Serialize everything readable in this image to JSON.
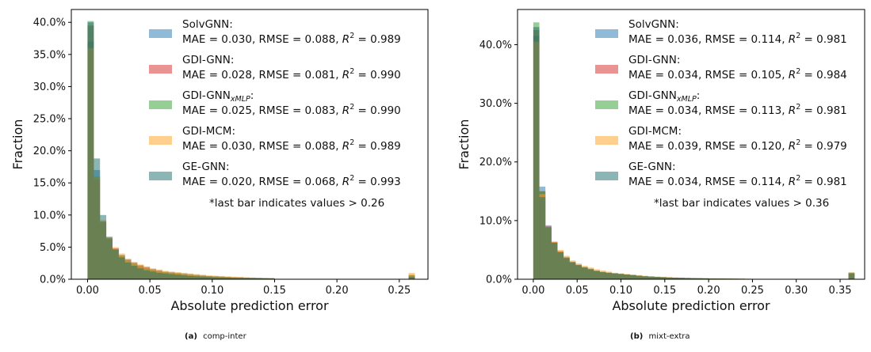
{
  "chart_data": [
    {
      "type": "bar",
      "caption_letter": "(a)",
      "caption_text": "comp-inter",
      "xlabel": "Absolute prediction error",
      "ylabel": "Fraction",
      "xlim": [
        -0.013,
        0.273
      ],
      "ylim": [
        0,
        0.42
      ],
      "xticks": [
        0.0,
        0.05,
        0.1,
        0.15,
        0.2,
        0.25
      ],
      "xtick_labels": [
        "0.00",
        "0.05",
        "0.10",
        "0.15",
        "0.20",
        "0.25"
      ],
      "yticks": [
        0.0,
        0.05,
        0.1,
        0.15,
        0.2,
        0.25,
        0.3,
        0.35,
        0.4
      ],
      "ytick_labels": [
        "0.0%",
        "5.0%",
        "10.0%",
        "15.0%",
        "20.0%",
        "25.0%",
        "30.0%",
        "35.0%",
        "40.0%"
      ],
      "bin_width": 0.005,
      "last_bar_x": 0.26,
      "annotation": "*last bar indicates values > 0.26",
      "legend_position": "upper right",
      "series": [
        {
          "name": "SolvGNN",
          "metrics": "MAE = 0.030, RMSE = 0.088, R",
          "r2": " = 0.989",
          "color": "#1f77b4",
          "values": [
            0.37,
            0.17,
            0.088,
            0.062,
            0.048,
            0.038,
            0.031,
            0.026,
            0.022,
            0.019,
            0.016,
            0.014,
            0.012,
            0.011,
            0.01,
            0.009,
            0.008,
            0.007,
            0.006,
            0.005,
            0.0045,
            0.004,
            0.0035,
            0.003,
            0.003,
            0.0025,
            0.0022,
            0.002,
            0.0018,
            0.0016
          ],
          "last": 0.007
        },
        {
          "name": "GDI-GNN",
          "metrics": "MAE = 0.028, RMSE = 0.081, R",
          "r2": " = 0.990",
          "color": "#d62728",
          "values": [
            0.395,
            0.155,
            0.09,
            0.064,
            0.048,
            0.037,
            0.03,
            0.025,
            0.021,
            0.018,
            0.015,
            0.013,
            0.011,
            0.01,
            0.009,
            0.008,
            0.007,
            0.006,
            0.0055,
            0.005,
            0.0045,
            0.004,
            0.0035,
            0.003,
            0.0028,
            0.0025,
            0.0022,
            0.002,
            0.0018,
            0.0016
          ],
          "last": 0.006
        },
        {
          "name": "GDI-GNN",
          "sub": "xMLP",
          "metrics": "MAE = 0.025, RMSE = 0.083, R",
          "r2": " = 0.990",
          "color": "#2ca02c",
          "values": [
            0.402,
            0.16,
            0.09,
            0.063,
            0.047,
            0.036,
            0.029,
            0.024,
            0.02,
            0.017,
            0.014,
            0.012,
            0.011,
            0.01,
            0.009,
            0.008,
            0.007,
            0.006,
            0.0052,
            0.0047,
            0.0042,
            0.0038,
            0.0034,
            0.003,
            0.0027,
            0.0024,
            0.0021,
            0.0019,
            0.0017,
            0.0015
          ],
          "last": 0.006
        },
        {
          "name": "GDI-MCM",
          "metrics": "MAE = 0.030, RMSE = 0.088, R",
          "r2": " = 0.989",
          "color": "#ff9f1c",
          "values": [
            0.36,
            0.16,
            0.092,
            0.066,
            0.05,
            0.04,
            0.032,
            0.027,
            0.023,
            0.02,
            0.017,
            0.015,
            0.013,
            0.012,
            0.011,
            0.01,
            0.009,
            0.008,
            0.007,
            0.006,
            0.0055,
            0.005,
            0.0045,
            0.004,
            0.0035,
            0.003,
            0.0027,
            0.0024,
            0.0021,
            0.0019
          ],
          "last": 0.01
        },
        {
          "name": "GE-GNN",
          "metrics": "MAE = 0.020, RMSE = 0.068, R",
          "r2": " = 0.993",
          "color": "#1a6b6b",
          "values": [
            0.4,
            0.188,
            0.1,
            0.066,
            0.046,
            0.034,
            0.026,
            0.021,
            0.017,
            0.014,
            0.012,
            0.01,
            0.009,
            0.008,
            0.007,
            0.006,
            0.005,
            0.0045,
            0.004,
            0.0035,
            0.003,
            0.0027,
            0.0024,
            0.0021,
            0.0019,
            0.0017,
            0.0015,
            0.0013,
            0.0012,
            0.0011
          ],
          "last": 0.004
        }
      ]
    },
    {
      "type": "bar",
      "caption_letter": "(b)",
      "caption_text": "mixt-extra",
      "xlabel": "Absolute prediction error",
      "ylabel": "Fraction",
      "xlim": [
        -0.018,
        0.378
      ],
      "ylim": [
        0,
        0.46
      ],
      "xticks": [
        0.0,
        0.05,
        0.1,
        0.15,
        0.2,
        0.25,
        0.3,
        0.35
      ],
      "xtick_labels": [
        "0.00",
        "0.05",
        "0.10",
        "0.15",
        "0.20",
        "0.25",
        "0.30",
        "0.35"
      ],
      "yticks": [
        0.0,
        0.1,
        0.2,
        0.3,
        0.4
      ],
      "ytick_labels": [
        "0.0%",
        "10.0%",
        "20.0%",
        "30.0%",
        "40.0%"
      ],
      "bin_width": 0.0069,
      "last_bar_x": 0.363,
      "annotation": "*last bar indicates values > 0.36",
      "legend_position": "upper right",
      "series": [
        {
          "name": "SolvGNN",
          "metrics": "MAE = 0.036, RMSE = 0.114, R",
          "r2": " = 0.981",
          "color": "#1f77b4",
          "values": [
            0.415,
            0.158,
            0.092,
            0.064,
            0.048,
            0.038,
            0.03,
            0.025,
            0.021,
            0.018,
            0.015,
            0.013,
            0.011,
            0.01,
            0.009,
            0.008,
            0.007,
            0.006,
            0.005,
            0.0045,
            0.004,
            0.0035,
            0.003,
            0.0027,
            0.0024,
            0.0021,
            0.0019,
            0.0017,
            0.0015,
            0.0013,
            0.0012,
            0.0011,
            0.001,
            0.0009,
            0.0008,
            0.0007,
            0.0006,
            0.0006,
            0.0005,
            0.0005,
            0.0004,
            0.0004,
            0.0004,
            0.0003,
            0.0003,
            0.0003,
            0.0003,
            0.0002,
            0.0002,
            0.0002,
            0.0002
          ],
          "last": 0.011
        },
        {
          "name": "GDI-GNN",
          "metrics": "MAE = 0.034, RMSE = 0.105, R",
          "r2": " = 0.984",
          "color": "#d62728",
          "values": [
            0.425,
            0.15,
            0.09,
            0.063,
            0.047,
            0.037,
            0.029,
            0.024,
            0.02,
            0.017,
            0.014,
            0.012,
            0.011,
            0.01,
            0.009,
            0.008,
            0.007,
            0.006,
            0.005,
            0.0045,
            0.004,
            0.0035,
            0.003,
            0.0027,
            0.0024,
            0.0021,
            0.0019,
            0.0017,
            0.0015,
            0.0013,
            0.0012,
            0.0011,
            0.001,
            0.0009,
            0.0008,
            0.0007,
            0.0006,
            0.0006,
            0.0005,
            0.0005,
            0.0004,
            0.0004,
            0.0004,
            0.0003,
            0.0003,
            0.0003,
            0.0003,
            0.0002,
            0.0002,
            0.0002,
            0.0002
          ],
          "last": 0.01
        },
        {
          "name": "GDI-GNN",
          "sub": "xMLP",
          "metrics": "MAE = 0.034, RMSE = 0.113, R",
          "r2": " = 0.981",
          "color": "#2ca02c",
          "values": [
            0.438,
            0.15,
            0.089,
            0.062,
            0.046,
            0.036,
            0.029,
            0.024,
            0.02,
            0.017,
            0.014,
            0.012,
            0.011,
            0.01,
            0.009,
            0.008,
            0.007,
            0.006,
            0.005,
            0.0045,
            0.004,
            0.0035,
            0.003,
            0.0027,
            0.0024,
            0.0021,
            0.0019,
            0.0017,
            0.0015,
            0.0013,
            0.0012,
            0.0011,
            0.001,
            0.0009,
            0.0008,
            0.0007,
            0.0006,
            0.0006,
            0.0005,
            0.0005,
            0.0004,
            0.0004,
            0.0004,
            0.0003,
            0.0003,
            0.0003,
            0.0003,
            0.0002,
            0.0002,
            0.0002,
            0.0002
          ],
          "last": 0.011
        },
        {
          "name": "GDI-MCM",
          "metrics": "MAE = 0.039, RMSE = 0.120, R",
          "r2": " = 0.979",
          "color": "#ff9f1c",
          "values": [
            0.405,
            0.145,
            0.088,
            0.064,
            0.05,
            0.04,
            0.032,
            0.027,
            0.023,
            0.02,
            0.017,
            0.015,
            0.013,
            0.011,
            0.01,
            0.009,
            0.008,
            0.007,
            0.006,
            0.005,
            0.0045,
            0.004,
            0.0035,
            0.003,
            0.0027,
            0.0024,
            0.0021,
            0.0019,
            0.0017,
            0.0015,
            0.0013,
            0.0012,
            0.0011,
            0.001,
            0.0009,
            0.0008,
            0.0007,
            0.0006,
            0.0006,
            0.0005,
            0.0005,
            0.0004,
            0.0004,
            0.0004,
            0.0003,
            0.0003,
            0.0003,
            0.0003,
            0.0002,
            0.0002,
            0.0002
          ],
          "last": 0.012
        },
        {
          "name": "GE-GNN",
          "metrics": "MAE = 0.034, RMSE = 0.114, R",
          "r2": " = 0.981",
          "color": "#1a6b6b",
          "values": [
            0.43,
            0.14,
            0.088,
            0.062,
            0.046,
            0.036,
            0.029,
            0.024,
            0.02,
            0.017,
            0.014,
            0.012,
            0.011,
            0.01,
            0.009,
            0.008,
            0.007,
            0.006,
            0.005,
            0.0045,
            0.004,
            0.0035,
            0.003,
            0.0027,
            0.0024,
            0.0021,
            0.0019,
            0.0017,
            0.0015,
            0.0013,
            0.0012,
            0.0011,
            0.001,
            0.0009,
            0.0008,
            0.0007,
            0.0006,
            0.0006,
            0.0005,
            0.0005,
            0.0004,
            0.0004,
            0.0004,
            0.0003,
            0.0003,
            0.0003,
            0.0003,
            0.0002,
            0.0002,
            0.0002,
            0.0002
          ],
          "last": 0.01
        }
      ]
    }
  ]
}
